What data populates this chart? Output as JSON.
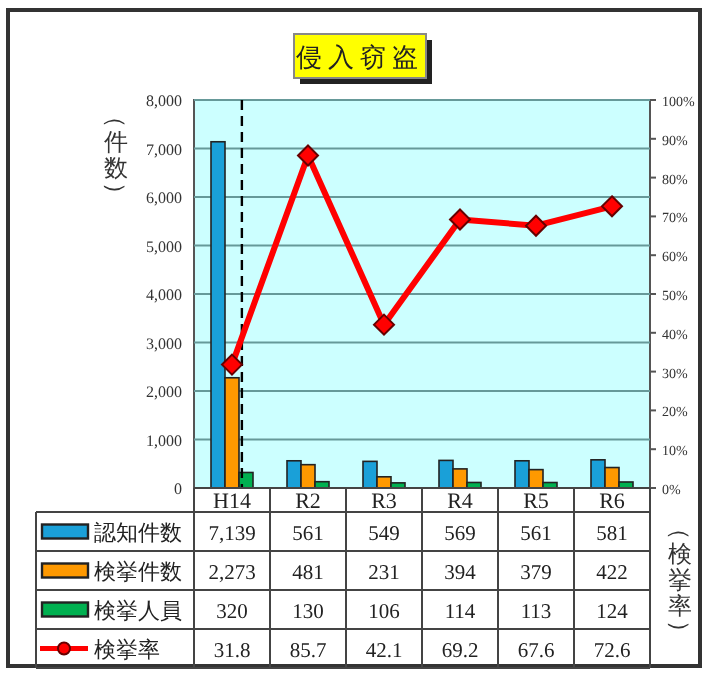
{
  "chart_data": {
    "type": "bar",
    "title": "侵入窃盗",
    "ylabel": "（件数）",
    "y2label": "（検挙率）",
    "categories": [
      "H14",
      "R2",
      "R3",
      "R4",
      "R5",
      "R6"
    ],
    "series": [
      {
        "name": "認知件数",
        "color": "#1aa0d8",
        "values": [
          7139,
          561,
          549,
          569,
          561,
          581
        ],
        "value_labels": [
          "7,139",
          "561",
          "549",
          "569",
          "561",
          "581"
        ]
      },
      {
        "name": "検挙件数",
        "color": "#ff9900",
        "values": [
          2273,
          481,
          231,
          394,
          379,
          422
        ],
        "value_labels": [
          "2,273",
          "481",
          "231",
          "394",
          "379",
          "422"
        ]
      },
      {
        "name": "検挙人員",
        "color": "#00b050",
        "values": [
          320,
          130,
          106,
          114,
          113,
          124
        ],
        "value_labels": [
          "320",
          "130",
          "106",
          "114",
          "113",
          "124"
        ]
      },
      {
        "name": "検挙率",
        "type": "line",
        "axis": "y2",
        "color": "#ff0000",
        "marker": "diamond",
        "values": [
          31.8,
          85.7,
          42.1,
          69.2,
          67.6,
          72.6
        ],
        "value_labels": [
          "31.8",
          "85.7",
          "42.1",
          "69.2",
          "67.6",
          "72.6"
        ]
      }
    ],
    "ylim": [
      0,
      8000
    ],
    "yticks": [
      {
        "value": 0,
        "label": "0"
      },
      {
        "value": 1000,
        "label": "1,000"
      },
      {
        "value": 2000,
        "label": "2,000"
      },
      {
        "value": 3000,
        "label": "3,000"
      },
      {
        "value": 4000,
        "label": "4,000"
      },
      {
        "value": 5000,
        "label": "5,000"
      },
      {
        "value": 6000,
        "label": "6,000"
      },
      {
        "value": 7000,
        "label": "7,000"
      },
      {
        "value": 8000,
        "label": "8,000"
      }
    ],
    "y2lim": [
      0,
      100
    ],
    "y2ticks": [
      {
        "value": 0,
        "label": "0%"
      },
      {
        "value": 10,
        "label": "10%"
      },
      {
        "value": 20,
        "label": "20%"
      },
      {
        "value": 30,
        "label": "30%"
      },
      {
        "value": 40,
        "label": "40%"
      },
      {
        "value": 50,
        "label": "50%"
      },
      {
        "value": 60,
        "label": "60%"
      },
      {
        "value": 70,
        "label": "70%"
      },
      {
        "value": 80,
        "label": "80%"
      },
      {
        "value": 90,
        "label": "90%"
      },
      {
        "value": 100,
        "label": "100%"
      }
    ],
    "ref_lines": [
      {
        "axis": "x",
        "value": "H14",
        "color": "#000000",
        "line_style": "dashed"
      }
    ],
    "grid": "y",
    "legend": "bottom"
  }
}
